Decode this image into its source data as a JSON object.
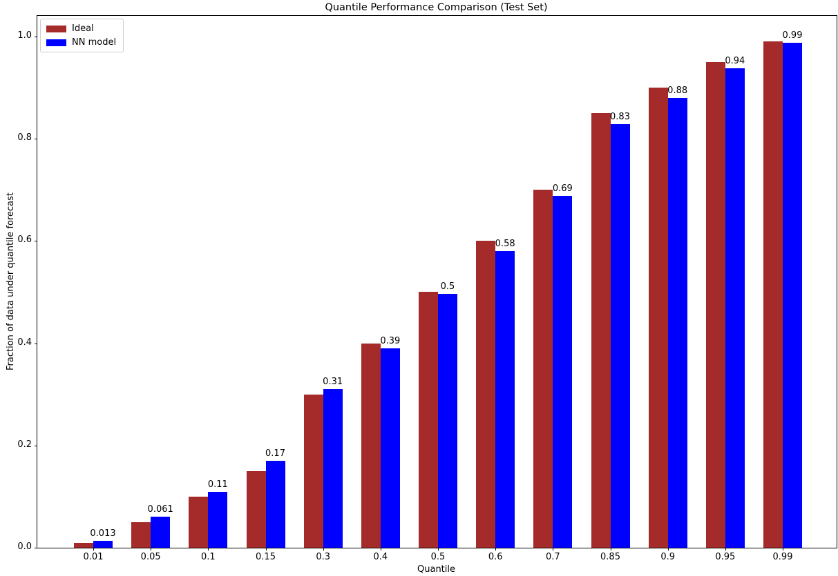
{
  "chart_data": {
    "type": "bar",
    "title": "Quantile Performance Comparison (Test Set)",
    "xlabel": "Quantile",
    "ylabel": "Fraction of data under quantile forecast",
    "categories": [
      "0.01",
      "0.05",
      "0.1",
      "0.15",
      "0.3",
      "0.4",
      "0.5",
      "0.6",
      "0.7",
      "0.85",
      "0.9",
      "0.95",
      "0.99"
    ],
    "series": [
      {
        "name": "Ideal",
        "color": "#a52a2a",
        "values": [
          0.01,
          0.05,
          0.1,
          0.15,
          0.3,
          0.4,
          0.5,
          0.6,
          0.7,
          0.85,
          0.9,
          0.95,
          0.99
        ]
      },
      {
        "name": "NN model",
        "color": "#0000ff",
        "values": [
          0.013,
          0.061,
          0.11,
          0.17,
          0.31,
          0.39,
          0.496,
          0.58,
          0.688,
          0.828,
          0.88,
          0.937,
          0.988
        ],
        "bar_labels": [
          "0.013",
          "0.061",
          "0.11",
          "0.17",
          "0.31",
          "0.39",
          "0.5",
          "0.58",
          "0.69",
          "0.83",
          "0.88",
          "0.94",
          "0.99"
        ]
      }
    ],
    "ytick_labels": [
      "0.0",
      "0.2",
      "0.4",
      "0.6",
      "0.8",
      "1.0"
    ],
    "yticks": [
      0.0,
      0.2,
      0.4,
      0.6,
      0.8,
      1.0
    ],
    "ylim": [
      0,
      1.04
    ],
    "grid": false,
    "legend": {
      "position": "upper left",
      "entries": [
        "Ideal",
        "NN model"
      ]
    }
  }
}
